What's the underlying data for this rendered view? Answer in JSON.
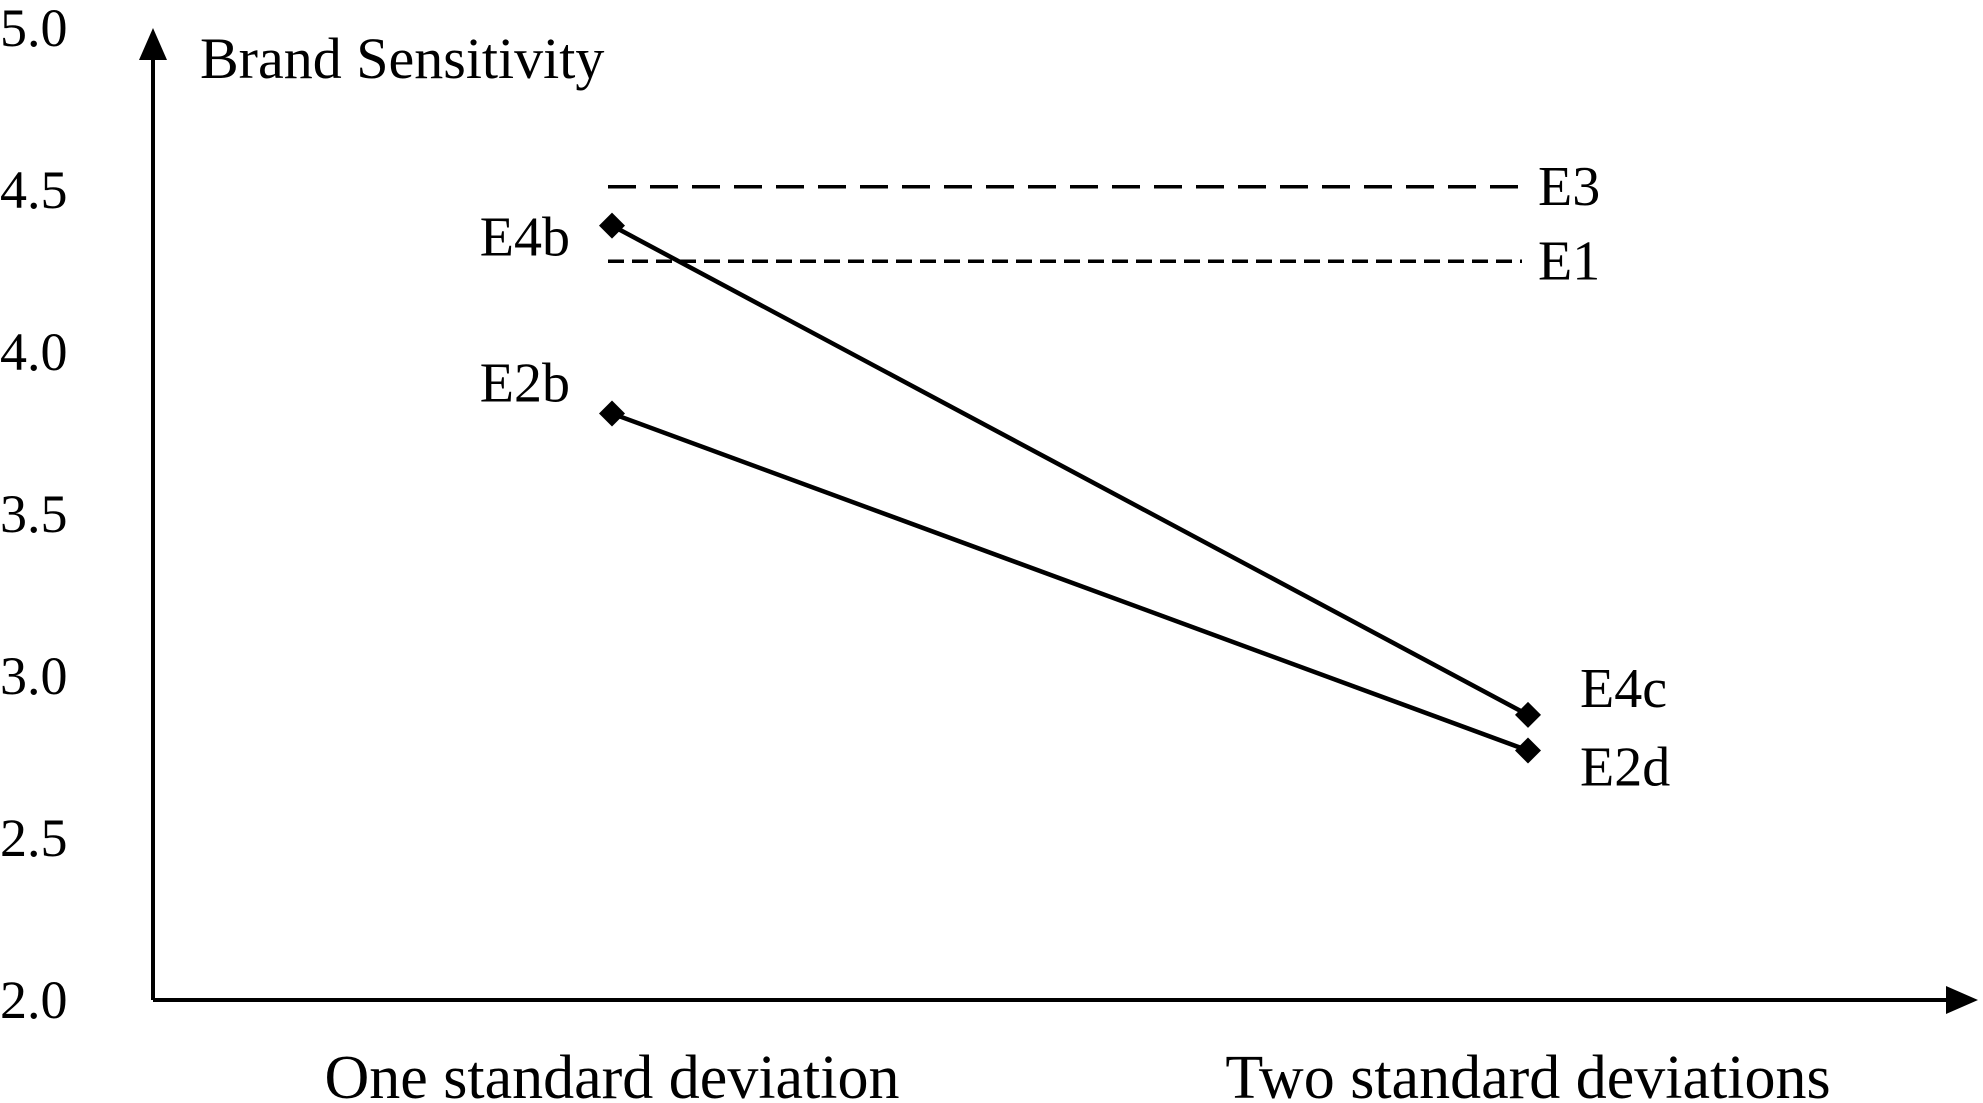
{
  "chart_data": {
    "type": "line",
    "ylabel": "Brand Sensitivity",
    "ylim": [
      2.0,
      5.0
    ],
    "y_ticks": [
      "2.0",
      "2.5",
      "3.0",
      "3.5",
      "4.0",
      "4.5",
      "5.0"
    ],
    "categories": [
      "One standard deviation",
      "Two standard deviations"
    ],
    "series": [
      {
        "points": [
          {
            "label": "E4b",
            "y": 4.39
          },
          {
            "label": "E4c",
            "y": 2.88
          }
        ]
      },
      {
        "points": [
          {
            "label": "E2b",
            "y": 3.81
          },
          {
            "label": "E2d",
            "y": 2.77
          }
        ]
      }
    ],
    "reference_lines": [
      {
        "label": "E3",
        "y": 4.51,
        "style": "dashed"
      },
      {
        "label": "E1",
        "y": 4.28,
        "style": "dashed"
      }
    ],
    "grid": false,
    "colors": {
      "ink": "#000000",
      "background": "#ffffff"
    }
  }
}
